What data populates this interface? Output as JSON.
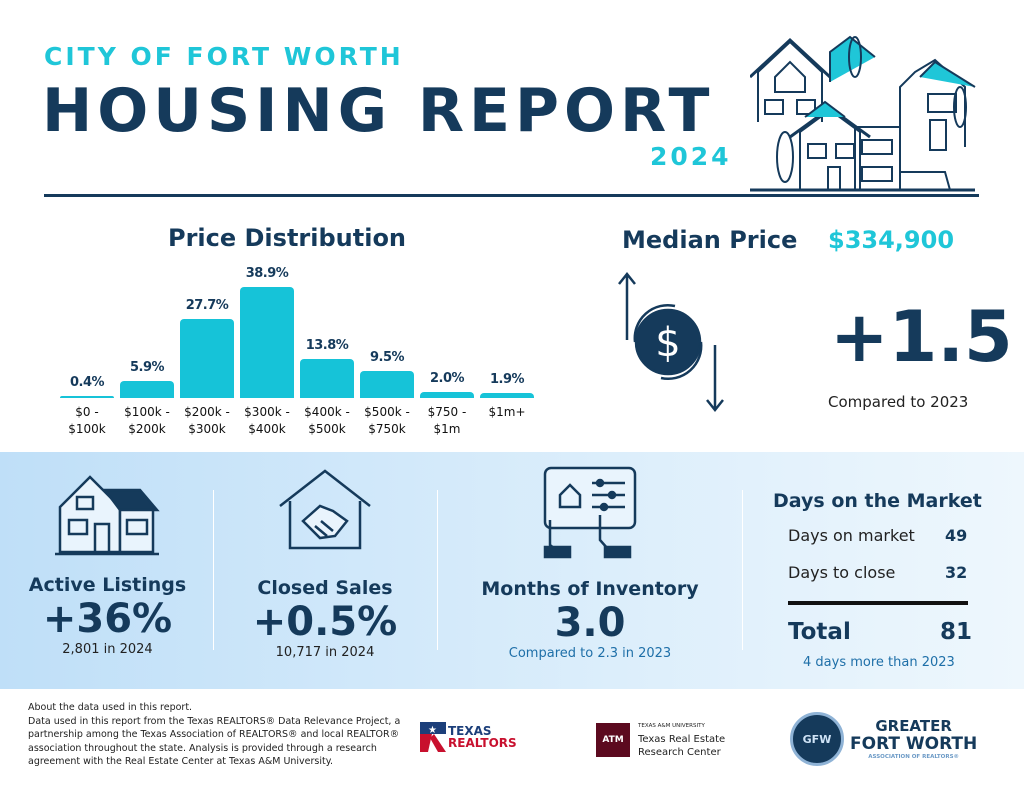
{
  "header": {
    "subtitle": "CITY OF FORT WORTH",
    "title": "HOUSING REPORT",
    "year": "2024"
  },
  "chart_data": {
    "type": "bar",
    "title": "Price Distribution",
    "categories": [
      "$0 - $100k",
      "$100k - $200k",
      "$200k - $300k",
      "$300k - $400k",
      "$400k - $500k",
      "$500k - $750k",
      "$750 - $1m",
      "$1m+"
    ],
    "category_lines": [
      [
        "$0 -",
        "$100k"
      ],
      [
        "$100k -",
        "$200k"
      ],
      [
        "$200k -",
        "$300k"
      ],
      [
        "$300k -",
        "$400k"
      ],
      [
        "$400k -",
        "$500k"
      ],
      [
        "$500k -",
        "$750k"
      ],
      [
        "$750 -",
        "$1m"
      ],
      [
        "$1m+",
        ""
      ]
    ],
    "values": [
      0.4,
      5.9,
      27.7,
      38.9,
      13.8,
      9.5,
      2.0,
      1.9
    ],
    "labels": [
      "0.4%",
      "5.9%",
      "27.7%",
      "38.9%",
      "13.8%",
      "9.5%",
      "2.0%",
      "1.9%"
    ],
    "unit": "%",
    "color": "#16c3d8"
  },
  "median": {
    "label": "Median Price",
    "value": "$334,900",
    "change": "+1.5",
    "note": "Compared to 2023"
  },
  "stats": [
    {
      "label": "Active Listings",
      "value": "+36%",
      "note": "2,801 in  2024"
    },
    {
      "label": "Closed Sales",
      "value": "+0.5%",
      "note": "10,717 in 2024"
    },
    {
      "label": "Months of Inventory",
      "value": "3.0",
      "note": "Compared to 2.3 in 2023"
    }
  ],
  "dom": {
    "title": "Days on the Market",
    "rows": [
      {
        "label": "Days on market",
        "value": "49"
      },
      {
        "label": "Days to close",
        "value": "32"
      }
    ],
    "total_label": "Total",
    "total_value": "81",
    "note": "4 days more than 2023"
  },
  "footer": {
    "lines": [
      "About the data used in this report.",
      "Data used in this report from the Texas REALTORS® Data Relevance Project, a partnership among the Texas Association of REALTORS® and local REALTOR® association throughout the state. Analysis is provided through a research agreement with the Real Estate Center at Texas A&M University."
    ],
    "logos": {
      "texas_realtors": [
        "TEXAS",
        "REALTORS"
      ],
      "tamu": {
        "small": "TEXAS A&M UNIVERSITY",
        "line1": "Texas Real Estate",
        "line2": "Research Center",
        "mark": "ATM"
      },
      "gfw": {
        "line1": "GREATER",
        "line2": "FORT WORTH",
        "line3": "ASSOCIATION OF REALTORS®",
        "mark": "GFW"
      }
    }
  },
  "colors": {
    "navy": "#153a5b",
    "cyan": "#1fc6d8",
    "band": "#cfe7fa"
  }
}
